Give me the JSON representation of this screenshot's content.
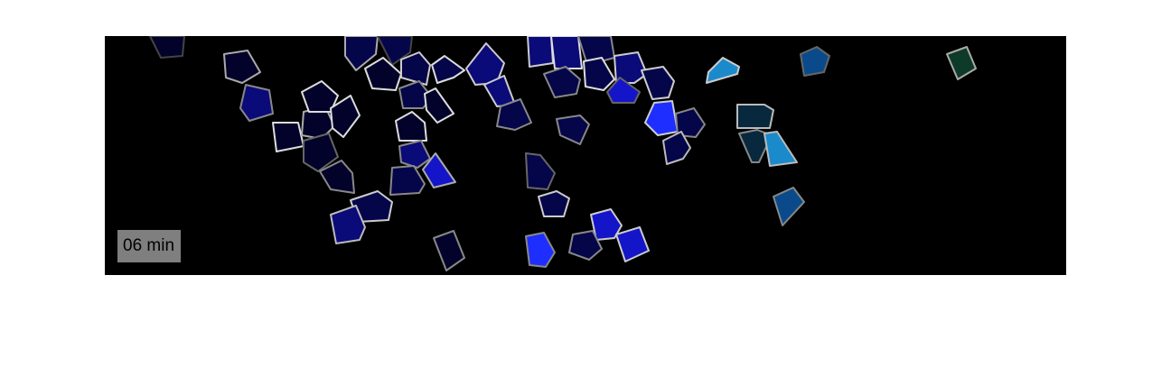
{
  "timestamp": "06 min",
  "colors": {
    "page_background": "#ffffff",
    "frame_background": "#000000",
    "label_background": "#7f7f7f",
    "cell_palette": [
      "#02022a",
      "#050549",
      "#0a0a78",
      "#1414c8",
      "#1e2eff",
      "#0a4a8a",
      "#1a8acb",
      "#08283e",
      "#0e3a2a"
    ]
  }
}
